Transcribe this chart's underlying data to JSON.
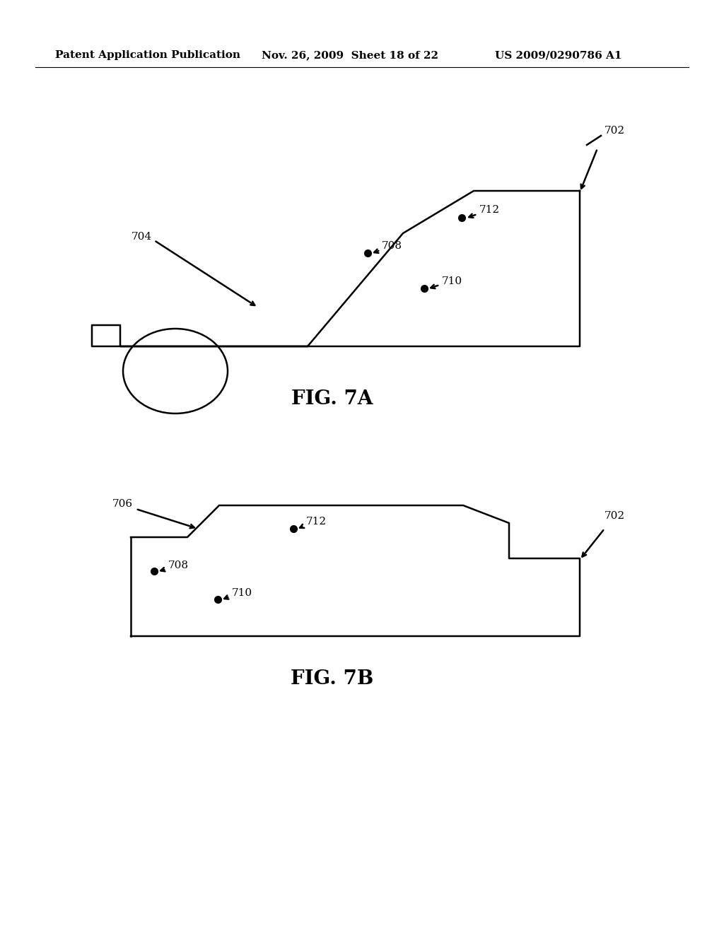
{
  "bg_color": "#ffffff",
  "header_text": "Patent Application Publication",
  "header_date": "Nov. 26, 2009  Sheet 18 of 22",
  "header_patent": "US 2009/0290786 A1",
  "fig7a_label": "FIG. 7A",
  "fig7b_label": "FIG. 7B",
  "line_color": "#000000",
  "dot_color": "#000000",
  "text_color": "#000000",
  "line_width": 1.8,
  "dot_size": 7,
  "label_fontsize": 11,
  "fig_label_fontsize": 20,
  "header_fontsize": 11
}
